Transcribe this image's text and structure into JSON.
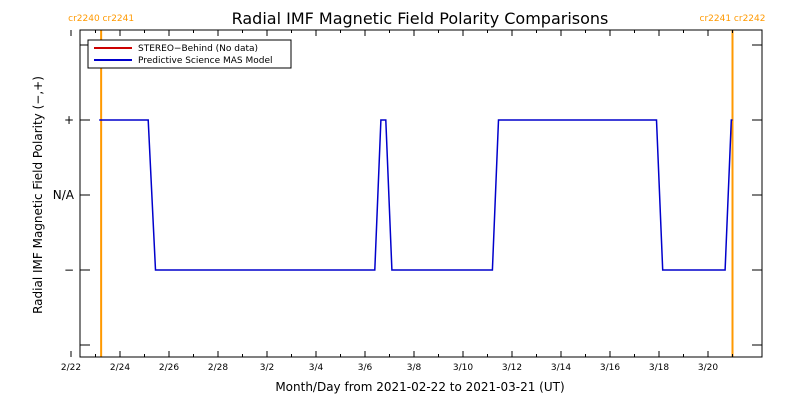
{
  "chart_data": {
    "type": "line",
    "title": "Radial IMF Magnetic Field Polarity Comparisons",
    "xlabel": "Month/Day from 2021-02-22 to 2021-03-21 (UT)",
    "ylabel": "Radial IMF Magnetic Field Polarity (−,+)",
    "x_range_days": [
      0,
      27
    ],
    "ylim": [
      -2,
      2
    ],
    "x_ticks": [
      {
        "day": 0,
        "label": "2/22"
      },
      {
        "day": 2,
        "label": "2/24"
      },
      {
        "day": 4,
        "label": "2/26"
      },
      {
        "day": 6,
        "label": "2/28"
      },
      {
        "day": 8,
        "label": "3/2"
      },
      {
        "day": 10,
        "label": "3/4"
      },
      {
        "day": 12,
        "label": "3/6"
      },
      {
        "day": 14,
        "label": "3/8"
      },
      {
        "day": 16,
        "label": "3/10"
      },
      {
        "day": 18,
        "label": "3/12"
      },
      {
        "day": 20,
        "label": "3/14"
      },
      {
        "day": 22,
        "label": "3/16"
      },
      {
        "day": 24,
        "label": "3/18"
      },
      {
        "day": 26,
        "label": "3/20"
      }
    ],
    "y_ticks": [
      {
        "value": 1,
        "label": "+"
      },
      {
        "value": 0,
        "label": "N/A"
      },
      {
        "value": -1,
        "label": "−"
      }
    ],
    "carrington_markers": [
      {
        "day": 1.23,
        "left": "cr2240",
        "right": "cr2241"
      },
      {
        "day": 27.0,
        "left": "cr2241",
        "right": "cr2242"
      }
    ],
    "legend": {
      "placement": "top-left",
      "entries": [
        {
          "label": "STEREO−Behind (No data)",
          "color": "#cc0000"
        },
        {
          "label": "Predictive Science MAS Model",
          "color": "#0000cc"
        }
      ]
    },
    "series": [
      {
        "name": "Predictive Science MAS Model",
        "color": "#0000cc",
        "points": [
          [
            1.15,
            1
          ],
          [
            3.15,
            1
          ],
          [
            3.45,
            -1
          ],
          [
            12.4,
            -1
          ],
          [
            12.65,
            1
          ],
          [
            12.85,
            1
          ],
          [
            13.1,
            -1
          ],
          [
            17.2,
            -1
          ],
          [
            17.45,
            1
          ],
          [
            23.9,
            1
          ],
          [
            24.15,
            -1
          ],
          [
            26.7,
            -1
          ],
          [
            26.95,
            1
          ],
          [
            27.0,
            1
          ]
        ]
      }
    ],
    "colors": {
      "marker": "#ff9900",
      "axis": "#000000"
    }
  }
}
